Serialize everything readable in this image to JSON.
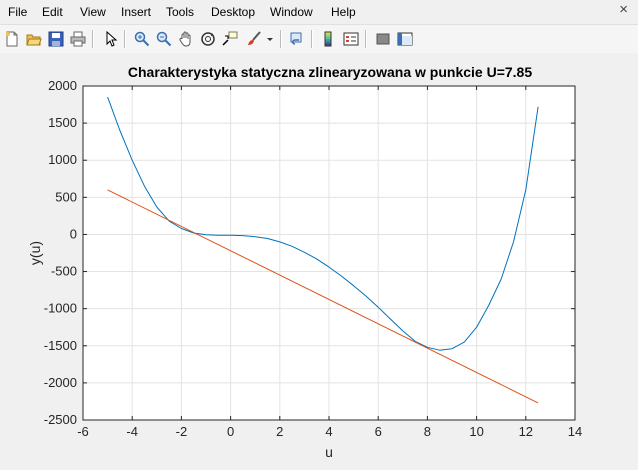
{
  "menu": {
    "items": [
      "File",
      "Edit",
      "View",
      "Insert",
      "Tools",
      "Desktop",
      "Window",
      "Help"
    ],
    "close_glyph": "×"
  },
  "toolbar": {
    "buttons": [
      {
        "name": "new-figure-icon"
      },
      {
        "name": "open-file-icon"
      },
      {
        "name": "save-icon"
      },
      {
        "name": "print-icon"
      },
      {
        "name": "edit-plot-arrow-icon"
      },
      {
        "name": "zoom-in-icon"
      },
      {
        "name": "zoom-out-icon"
      },
      {
        "name": "pan-hand-icon"
      },
      {
        "name": "rotate-3d-icon"
      },
      {
        "name": "data-cursor-icon"
      },
      {
        "name": "brush-icon"
      },
      {
        "name": "brush-dropdown-icon"
      },
      {
        "name": "link-plot-icon"
      },
      {
        "name": "insert-colorbar-icon"
      },
      {
        "name": "insert-legend-icon"
      },
      {
        "name": "hide-plot-tools-icon"
      },
      {
        "name": "show-plot-tools-icon"
      }
    ]
  },
  "colors": {
    "curve": "#0072bd",
    "tangent": "#d95319",
    "grid": "#e3e3e3",
    "axes_bg": "#ffffff"
  },
  "chart_data": {
    "type": "line",
    "title": "Charakterystyka statyczna zlinearyzowana w punkcie U=7.85",
    "xlabel": "u",
    "ylabel": "y(u)",
    "xlim": [
      -6,
      14
    ],
    "ylim": [
      -2500,
      2000
    ],
    "xticks": [
      -6,
      -4,
      -2,
      0,
      2,
      4,
      6,
      8,
      10,
      12,
      14
    ],
    "yticks": [
      2000,
      1500,
      1000,
      500,
      0,
      -500,
      -1000,
      -1500,
      -2000,
      -2500
    ],
    "grid": true,
    "series": [
      {
        "color": "#0072bd",
        "x": [
          -5,
          -4.5,
          -4,
          -3.5,
          -3,
          -2.5,
          -2,
          -1.5,
          -1,
          -0.5,
          0,
          0.5,
          1,
          1.5,
          2,
          2.5,
          3,
          3.5,
          4,
          4.5,
          5,
          5.5,
          6,
          6.5,
          7,
          7.5,
          8,
          8.5,
          9,
          9.5,
          10,
          10.5,
          11,
          11.5,
          12,
          12.5
        ],
        "y": [
          1850,
          1400,
          1000,
          650,
          370,
          180,
          80,
          20,
          -5,
          -10,
          -10,
          -15,
          -30,
          -55,
          -100,
          -160,
          -240,
          -330,
          -440,
          -560,
          -690,
          -830,
          -980,
          -1140,
          -1300,
          -1440,
          -1520,
          -1560,
          -1540,
          -1450,
          -1250,
          -950,
          -600,
          -100,
          600,
          1720
        ]
      },
      {
        "color": "#d95319",
        "x": [
          -5,
          12.5
        ],
        "y": [
          600,
          -2270
        ]
      }
    ]
  }
}
